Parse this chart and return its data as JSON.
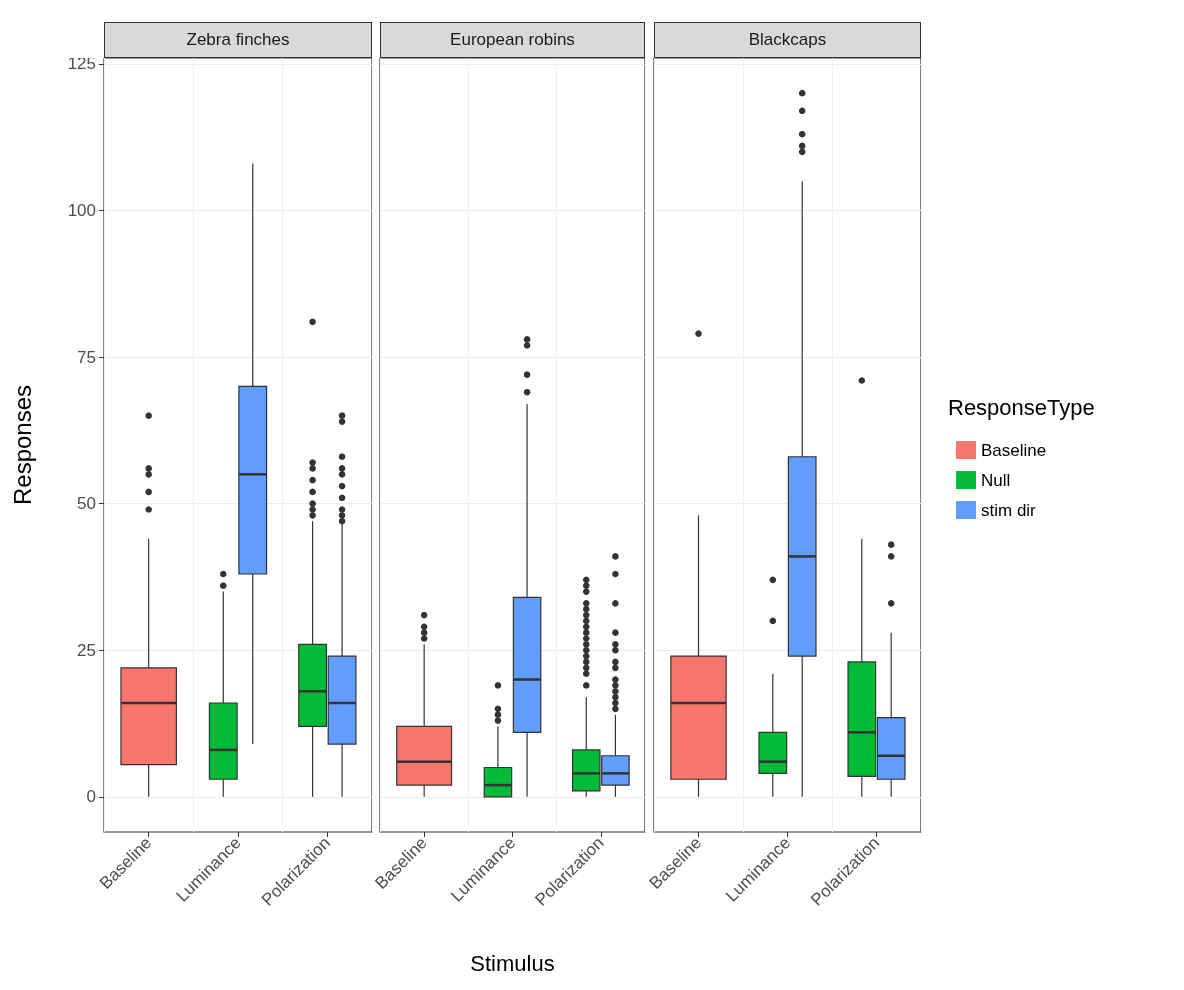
{
  "chart_data": [
    {
      "type": "box",
      "title": "Zebra finches",
      "ylabel": "Responses",
      "categories": [
        "Baseline",
        "Luminance",
        "Polarization"
      ],
      "ylim": [
        -6,
        126
      ],
      "yticks": [
        0,
        25,
        50,
        75,
        100,
        125
      ],
      "grid": true,
      "series": [
        {
          "color": "#f8766d",
          "boxes": [
            {
              "low": 0,
              "q1": 5.5,
              "median": 16,
              "q3": 22,
              "high": 44,
              "outliers": [
                49,
                52,
                55,
                56,
                65
              ]
            },
            null,
            null
          ]
        },
        {
          "color": "#00ba38",
          "boxes": [
            null,
            {
              "low": 0,
              "q1": 3,
              "median": 8,
              "q3": 16,
              "high": 35,
              "outliers": [
                36,
                38
              ]
            },
            {
              "low": 0,
              "q1": 12,
              "median": 18,
              "q3": 26,
              "high": 47,
              "outliers": [
                48,
                49,
                50,
                52,
                54,
                56,
                57,
                81
              ]
            }
          ]
        },
        {
          "color": "#619cff",
          "boxes": [
            null,
            {
              "low": 9,
              "q1": 38,
              "median": 55,
              "q3": 70,
              "high": 108
            },
            {
              "low": 0,
              "q1": 9,
              "median": 16,
              "q3": 24,
              "high": 47,
              "outliers": [
                47,
                48,
                49,
                51,
                53,
                55,
                56,
                58,
                64,
                65
              ]
            }
          ]
        }
      ]
    },
    {
      "type": "box",
      "title": "European robins",
      "xlabel": "Stimulus",
      "categories": [
        "Baseline",
        "Luminance",
        "Polarization"
      ],
      "ylim": [
        -6,
        126
      ],
      "yticks": [
        0,
        25,
        50,
        75,
        100,
        125
      ],
      "grid": true,
      "tick_labels": "x",
      "series": [
        {
          "color": "#f8766d",
          "boxes": [
            {
              "low": 0,
              "q1": 2,
              "median": 6,
              "q3": 12,
              "high": 26,
              "outliers": [
                27,
                28,
                29,
                31
              ]
            },
            null,
            null
          ]
        },
        {
          "color": "#00ba38",
          "boxes": [
            null,
            {
              "low": 0,
              "q1": 0,
              "median": 2,
              "q3": 5,
              "high": 12,
              "outliers": [
                13,
                14,
                15,
                19
              ]
            },
            {
              "low": 0,
              "q1": 1,
              "median": 4,
              "q3": 8,
              "high": 17,
              "outliers": [
                19,
                21,
                22,
                23,
                24,
                25,
                26,
                27,
                28,
                29,
                30,
                31,
                32,
                33,
                35,
                36,
                37
              ]
            }
          ]
        },
        {
          "color": "#619cff",
          "boxes": [
            null,
            {
              "low": 0,
              "q1": 11,
              "median": 20,
              "q3": 34,
              "high": 67,
              "outliers": [
                69,
                72,
                77,
                78
              ]
            },
            {
              "low": 0,
              "q1": 2,
              "median": 4,
              "q3": 7,
              "high": 14,
              "outliers": [
                15,
                16,
                17,
                18,
                19,
                20,
                22,
                23,
                25,
                26,
                28,
                33,
                38,
                41
              ]
            }
          ]
        }
      ]
    },
    {
      "type": "box",
      "title": "Blackcaps",
      "categories": [
        "Baseline",
        "Luminance",
        "Polarization"
      ],
      "ylim": [
        -6,
        126
      ],
      "yticks": [
        0,
        25,
        50,
        75,
        100,
        125
      ],
      "grid": true,
      "tick_labels": "x",
      "legend": "right",
      "legend_title": "ResponseType",
      "series": [
        {
          "name": "Baseline",
          "color": "#f8766d",
          "boxes": [
            {
              "low": 0,
              "q1": 3,
              "median": 16,
              "q3": 24,
              "high": 48,
              "outliers": [
                79
              ]
            },
            null,
            null
          ]
        },
        {
          "name": "Null",
          "color": "#00ba38",
          "boxes": [
            null,
            {
              "low": 0,
              "q1": 4,
              "median": 6,
              "q3": 11,
              "high": 21,
              "outliers": [
                30,
                37
              ]
            },
            {
              "low": 0,
              "q1": 3.5,
              "median": 11,
              "q3": 23,
              "high": 44,
              "outliers": [
                71
              ]
            }
          ]
        },
        {
          "name": "stim dir",
          "color": "#619cff",
          "boxes": [
            null,
            {
              "low": 0,
              "q1": 24,
              "median": 41,
              "q3": 58,
              "high": 105,
              "outliers": [
                110,
                111,
                113,
                117,
                120
              ]
            },
            {
              "low": 0,
              "q1": 3,
              "median": 7,
              "q3": 13.5,
              "high": 28,
              "outliers": [
                33,
                41,
                43
              ]
            }
          ]
        }
      ]
    }
  ]
}
